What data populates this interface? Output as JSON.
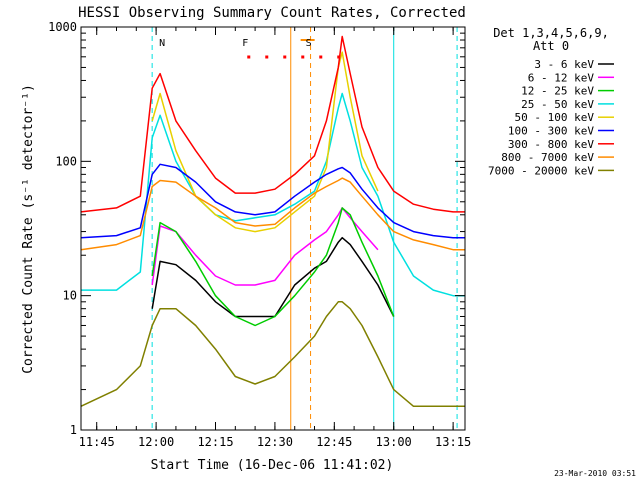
{
  "chart_data": {
    "type": "line",
    "title": "HESSI Observing Summary Count Rates, Corrected",
    "xlabel": "Start Time (16-Dec-06 11:41:02)",
    "ylabel": "Corrected Count Rate (s⁻¹ detector⁻¹)",
    "xlim": [
      "11:41:02",
      "13:18:00"
    ],
    "ylim": [
      1,
      1000
    ],
    "yscale": "log",
    "x_ticks": [
      "11:45",
      "12:00",
      "12:15",
      "12:30",
      "12:45",
      "13:00",
      "13:15"
    ],
    "y_ticks": [
      "1",
      "10",
      "100",
      "1000"
    ],
    "legend_title": [
      "Det 1,3,4,5,6,9,",
      "Att 0"
    ],
    "legend_position": "right",
    "grid": false,
    "timestamp": "23-Mar-2010 03:51",
    "x": [
      "11:41",
      "11:50",
      "11:56",
      "11:59",
      "12:01",
      "12:05",
      "12:10",
      "12:15",
      "12:20",
      "12:25",
      "12:30",
      "12:35",
      "12:40",
      "12:43",
      "12:46",
      "12:47",
      "12:49",
      "12:52",
      "12:56",
      "13:00",
      "13:05",
      "13:10",
      "13:15",
      "13:18"
    ],
    "series": [
      {
        "name": "3 - 6 keV",
        "color": "#000000",
        "values": [
          null,
          null,
          null,
          8,
          18,
          17,
          13,
          9,
          7,
          7,
          7,
          12,
          16,
          18,
          25,
          27,
          24,
          18,
          12,
          7,
          null,
          null,
          null,
          null
        ]
      },
      {
        "name": "6 - 12 keV",
        "color": "#ff00ff",
        "values": [
          null,
          null,
          null,
          12,
          33,
          30,
          20,
          14,
          12,
          12,
          13,
          20,
          26,
          30,
          40,
          45,
          38,
          30,
          22,
          null,
          null,
          null,
          null,
          null
        ]
      },
      {
        "name": "12 - 25 keV",
        "color": "#00cc00",
        "values": [
          null,
          null,
          null,
          14,
          35,
          30,
          18,
          10,
          7,
          6,
          7,
          10,
          15,
          20,
          35,
          45,
          40,
          25,
          14,
          7,
          null,
          null,
          null,
          null
        ]
      },
      {
        "name": "25 - 50 keV",
        "color": "#00e0e0",
        "values": [
          11,
          11,
          15,
          150,
          220,
          100,
          55,
          40,
          36,
          38,
          40,
          48,
          60,
          100,
          250,
          320,
          200,
          90,
          55,
          25,
          14,
          11,
          10,
          10
        ]
      },
      {
        "name": "50 - 100 keV",
        "color": "#e8d000",
        "values": [
          null,
          null,
          null,
          200,
          320,
          120,
          55,
          40,
          32,
          30,
          32,
          42,
          55,
          90,
          500,
          650,
          300,
          110,
          60,
          null,
          null,
          null,
          null,
          null
        ]
      },
      {
        "name": "100 - 300 keV",
        "color": "#0000ff",
        "values": [
          27,
          28,
          32,
          80,
          95,
          90,
          70,
          50,
          42,
          40,
          42,
          55,
          70,
          80,
          88,
          90,
          82,
          62,
          45,
          35,
          30,
          28,
          27,
          27
        ]
      },
      {
        "name": "300 - 800 keV",
        "color": "#ff0000",
        "values": [
          42,
          45,
          55,
          350,
          450,
          200,
          120,
          75,
          58,
          58,
          62,
          80,
          110,
          200,
          500,
          850,
          450,
          180,
          90,
          60,
          48,
          44,
          42,
          42
        ]
      },
      {
        "name": "800 - 7000 keV",
        "color": "#ff8c00",
        "values": [
          22,
          24,
          28,
          65,
          72,
          70,
          55,
          45,
          35,
          33,
          34,
          45,
          58,
          65,
          72,
          75,
          70,
          55,
          40,
          30,
          26,
          24,
          22,
          22
        ]
      },
      {
        "name": "7000 - 20000 keV",
        "color": "#808000",
        "values": [
          1.5,
          2,
          3,
          6,
          8,
          8,
          6,
          4,
          2.5,
          2.2,
          2.5,
          3.5,
          5,
          7,
          9,
          9,
          8,
          6,
          3.5,
          2,
          1.5,
          1.5,
          1.5,
          1.5
        ]
      }
    ],
    "annotations": [
      {
        "label": "N",
        "time": "12:00",
        "kind": "dashed-line",
        "color": "#00e0e0"
      },
      {
        "label": "S",
        "time": "12:37",
        "kind": "segment",
        "color": "#ff8c00"
      },
      {
        "label": "F",
        "time": "12:21",
        "kind": "dotted-bar",
        "color": "#ff0000"
      }
    ],
    "marker_lines": [
      {
        "time": "11:59",
        "style": "dashed",
        "color": "#00e0e0"
      },
      {
        "time": "13:00",
        "style": "solid",
        "color": "#00e0e0"
      },
      {
        "time": "13:16",
        "style": "dashed",
        "color": "#00e0e0"
      },
      {
        "time": "12:34",
        "style": "solid",
        "color": "#ff8c00"
      },
      {
        "time": "12:39",
        "style": "dashed",
        "color": "#ff8c00"
      }
    ]
  }
}
